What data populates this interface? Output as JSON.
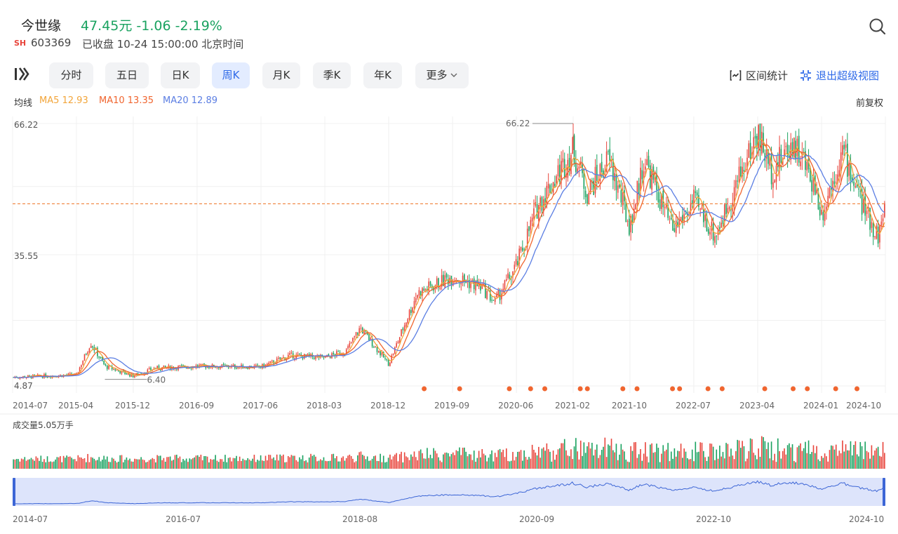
{
  "header": {
    "name": "今世缘",
    "price_line": "47.45元 -1.06 -2.19%",
    "market": "SH",
    "code": "603369",
    "status": "已收盘 10-24 15:00:00 北京时间"
  },
  "tabs": [
    {
      "label": "分时",
      "active": false
    },
    {
      "label": "五日",
      "active": false
    },
    {
      "label": "日K",
      "active": false
    },
    {
      "label": "周K",
      "active": true
    },
    {
      "label": "月K",
      "active": false
    },
    {
      "label": "季K",
      "active": false
    },
    {
      "label": "年K",
      "active": false
    },
    {
      "label": "更多",
      "active": false
    }
  ],
  "tools": {
    "interval_stats": "区间统计",
    "exit_super_view": "退出超级视图"
  },
  "ma": {
    "title": "均线",
    "ma5": "MA5 12.93",
    "ma10": "MA10 13.35",
    "ma20": "MA20 12.89"
  },
  "adjust_label": "前复权",
  "colors": {
    "up": "#e8453c",
    "down": "#1aa260",
    "ma5": "#f2a53a",
    "ma10": "#f0652f",
    "ma20": "#5b7ee3",
    "accent": "#2f6ae8"
  },
  "icons": {
    "search": "search-icon",
    "logo": "kline-logo-icon",
    "interval": "interval-stats-icon",
    "exit": "exit-fullscreen-icon",
    "more": "chevron-down-icon"
  },
  "chart_data": {
    "type": "candlestick",
    "y_labels": [
      "66.22",
      "35.55",
      "4.87"
    ],
    "ylim": [
      4.87,
      66.22
    ],
    "max_annotation": "66.22",
    "min_annotation": "6.40",
    "reference_price": 47.45,
    "x_labels": [
      "2014-07",
      "2015-04",
      "2015-12",
      "2016-09",
      "2017-06",
      "2018-03",
      "2018-12",
      "2019-09",
      "2020-06",
      "2021-02",
      "2021-10",
      "2022-07",
      "2023-04",
      "2024-01",
      "2024-10"
    ],
    "price_path": [
      {
        "x": "2014-07",
        "y": 6.9
      },
      {
        "x": "2015-04",
        "y": 7.5
      },
      {
        "x": "2015-06",
        "y": 15.0
      },
      {
        "x": "2015-08",
        "y": 9.5
      },
      {
        "x": "2015-12",
        "y": 7.2
      },
      {
        "x": "2016-03",
        "y": 9.0
      },
      {
        "x": "2016-09",
        "y": 9.5
      },
      {
        "x": "2017-06",
        "y": 9.3
      },
      {
        "x": "2017-10",
        "y": 12.0
      },
      {
        "x": "2018-03",
        "y": 11.5
      },
      {
        "x": "2018-06",
        "y": 13.0
      },
      {
        "x": "2018-08",
        "y": 18.5
      },
      {
        "x": "2018-12",
        "y": 10.0
      },
      {
        "x": "2019-04",
        "y": 26.5
      },
      {
        "x": "2019-09",
        "y": 30.5
      },
      {
        "x": "2020-01",
        "y": 28.0
      },
      {
        "x": "2020-03",
        "y": 24.5
      },
      {
        "x": "2020-06",
        "y": 33.0
      },
      {
        "x": "2020-09",
        "y": 47.0
      },
      {
        "x": "2021-02",
        "y": 60.0
      },
      {
        "x": "2021-04",
        "y": 50.0
      },
      {
        "x": "2021-07",
        "y": 58.0
      },
      {
        "x": "2021-10",
        "y": 42.0
      },
      {
        "x": "2021-12",
        "y": 58.0
      },
      {
        "x": "2022-04",
        "y": 41.0
      },
      {
        "x": "2022-07",
        "y": 48.0
      },
      {
        "x": "2022-10",
        "y": 40.0
      },
      {
        "x": "2023-04",
        "y": 64.0
      },
      {
        "x": "2023-06",
        "y": 55.0
      },
      {
        "x": "2023-09",
        "y": 62.0
      },
      {
        "x": "2023-12",
        "y": 52.0
      },
      {
        "x": "2024-01",
        "y": 45.0
      },
      {
        "x": "2024-04",
        "y": 60.0
      },
      {
        "x": "2024-07",
        "y": 46.0
      },
      {
        "x": "2024-09",
        "y": 40.0
      },
      {
        "x": "2024-10",
        "y": 47.45
      }
    ],
    "event_markers": [
      "2019-05",
      "2019-10",
      "2020-05",
      "2020-08",
      "2020-10",
      "2021-03",
      "2021-04",
      "2021-09",
      "2021-11",
      "2022-04",
      "2022-05",
      "2022-09",
      "2022-11",
      "2023-05",
      "2023-09",
      "2023-11",
      "2024-03",
      "2024-06"
    ],
    "volume_title": "成交量5.05万手",
    "nav_labels": [
      "2014-07",
      "2016-07",
      "2018-08",
      "2020-09",
      "2022-10",
      "2024-10"
    ]
  }
}
